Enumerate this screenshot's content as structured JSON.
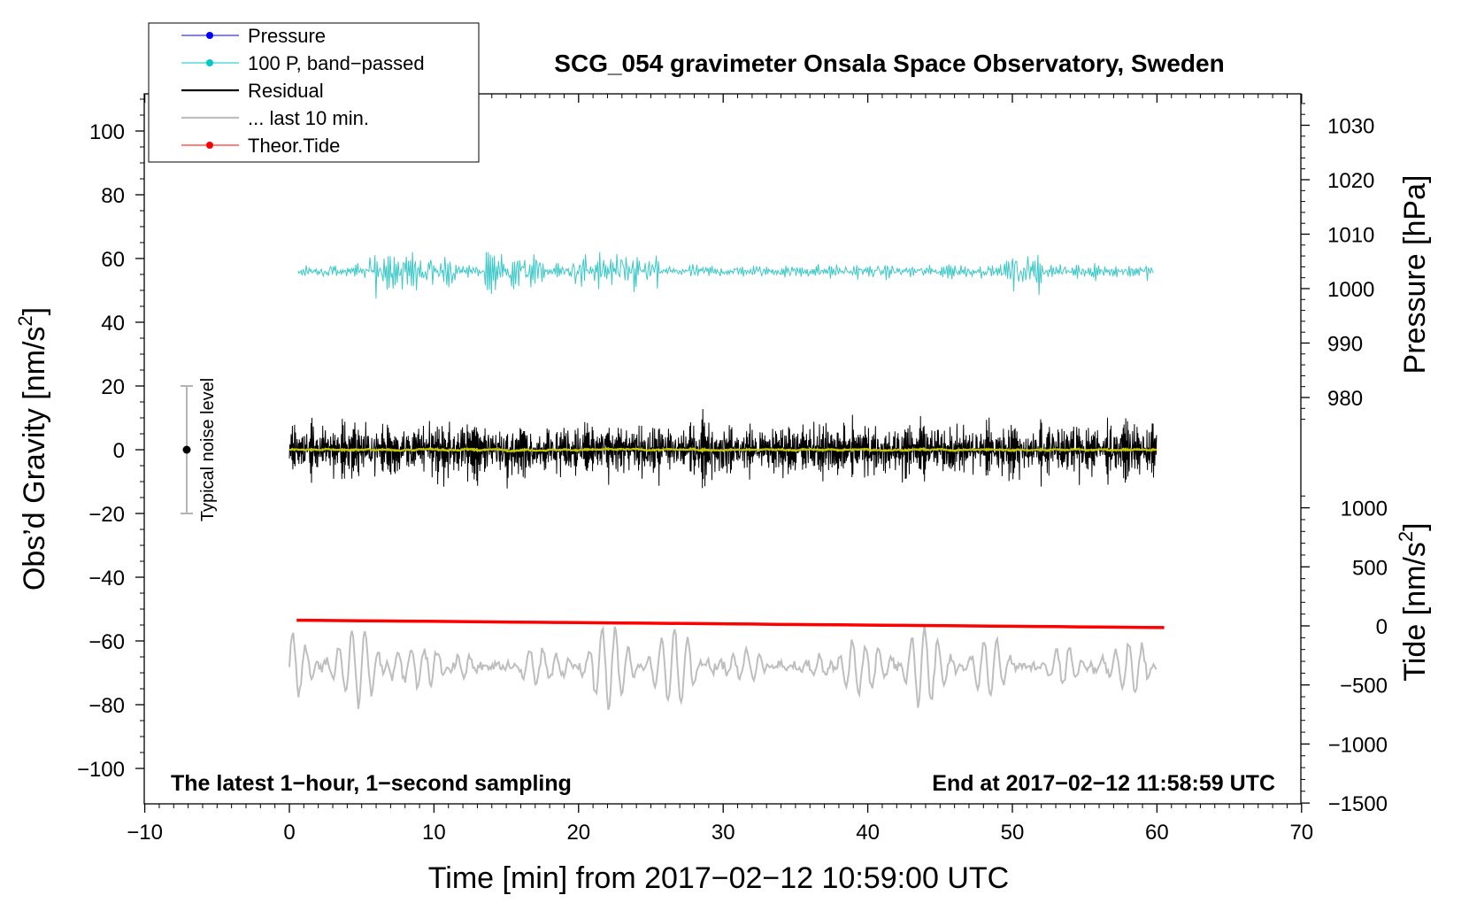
{
  "chart_data": {
    "type": "line",
    "title": "SCG_054 gravimeter Onsala Space Observatory, Sweden",
    "xlabel": "Time [min] from 2017−02−12 10:59:00 UTC",
    "ylabel_main": "Obs’d Gravity [nm/s",
    "ylabel_sup": "2",
    "ylabel_close": "]",
    "pressure_label": "Pressure [hPa]",
    "tide_label_main": "Tide [nm/s",
    "tide_label_sup": "2",
    "tide_label_close": "]",
    "xlim": [
      -10,
      70
    ],
    "ylim": [
      -105,
      110
    ],
    "x_ticks": [
      "−10",
      "0",
      "10",
      "20",
      "30",
      "40",
      "50",
      "60",
      "70"
    ],
    "x_tick_values": [
      -10,
      0,
      10,
      20,
      30,
      40,
      50,
      60,
      70
    ],
    "y_ticks": [
      "−100",
      "−80",
      "−60",
      "−40",
      "−20",
      "0",
      "20",
      "40",
      "60",
      "80",
      "100"
    ],
    "y_tick_values": [
      -100,
      -80,
      -60,
      -40,
      -20,
      0,
      20,
      40,
      60,
      80,
      100
    ],
    "pressure_ticks": [
      "980",
      "990",
      "1000",
      "1010",
      "1020",
      "1030"
    ],
    "pressure_tick_values": [
      980,
      990,
      1000,
      1010,
      1020,
      1030
    ],
    "tide_ticks": [
      "−1500",
      "−1000",
      "−500",
      "0",
      "500",
      "1000"
    ],
    "tide_tick_values": [
      -1500,
      -1000,
      -500,
      0,
      500,
      1000
    ],
    "legend": [
      {
        "label": "Pressure",
        "color": "#0000ff",
        "marker": true
      },
      {
        "label": "100 P, band−passed",
        "color": "#00c8c8",
        "marker": true
      },
      {
        "label": "Residual",
        "color": "#000000",
        "marker": false
      },
      {
        "label": "... last 10 min.",
        "color": "#bebebe",
        "marker": false
      },
      {
        "label": "Theor.Tide",
        "color": "#ff0000",
        "marker": true
      }
    ],
    "annotations": {
      "left_bottom": "The latest 1−hour, 1−second sampling",
      "right_bottom": "End at 2017−02−12 11:58:59 UTC",
      "noise": "Typical noise level"
    },
    "noise_bar": {
      "x": -7.1,
      "center": 0,
      "low": -20,
      "high": 20
    },
    "series": [
      {
        "name": "100 P, band−passed",
        "color": "#3ec8c8",
        "x_start": 0.6,
        "x_end": 59.8,
        "center": 56,
        "amplitude_range": [
          -13,
          6
        ]
      },
      {
        "name": "Residual",
        "color": "#000000",
        "x_start": 0,
        "x_end": 60,
        "center": 0,
        "amplitude_range": [
          -19,
          18
        ]
      },
      {
        "name": "Residual (smoothed)",
        "color": "#c8c800",
        "x_start": 0,
        "x_end": 60,
        "center": 0
      },
      {
        "name": "... last 10 min.",
        "color": "#bebebe",
        "x_start": 0,
        "x_end": 60,
        "center": -68,
        "amplitude_range": [
          -87,
          -52
        ]
      },
      {
        "name": "Theor.Tide",
        "color": "#ff0000",
        "x_start": 0.5,
        "x_end": 60.5,
        "y_start": -53.5,
        "y_end": -55.8
      }
    ]
  }
}
